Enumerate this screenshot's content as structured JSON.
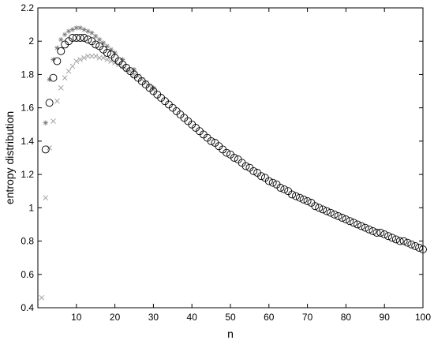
{
  "chart_data": {
    "type": "scatter",
    "xlabel": "n",
    "ylabel": "entropy distribution",
    "xlim": [
      0,
      100
    ],
    "ylim": [
      0.4,
      2.2
    ],
    "x_ticks": [
      10,
      20,
      30,
      40,
      50,
      60,
      70,
      80,
      90,
      100
    ],
    "y_ticks": [
      0.4,
      0.6,
      0.8,
      1.0,
      1.2,
      1.4,
      1.6,
      1.8,
      2.0,
      2.2
    ],
    "y_tick_labels": [
      "0.4",
      "0.6",
      "0.8",
      "1",
      "1.2",
      "1.4",
      "1.6",
      "1.8",
      "2",
      "2.2"
    ],
    "grid": false,
    "colors": {
      "circle": "#000000",
      "star": "#7a7a7a",
      "cross": "#9a9a9a",
      "axis": "#000000"
    },
    "series": [
      {
        "marker": "star",
        "x": [
          2,
          3,
          4,
          5,
          6,
          7,
          8,
          9,
          10,
          11,
          12,
          13,
          14,
          15,
          16,
          17,
          18,
          19,
          20,
          22,
          25,
          30
        ],
        "y": [
          1.51,
          1.77,
          1.89,
          1.96,
          2.01,
          2.04,
          2.06,
          2.07,
          2.08,
          2.08,
          2.07,
          2.06,
          2.05,
          2.03,
          2.01,
          1.99,
          1.97,
          1.95,
          1.93,
          1.89,
          1.83,
          1.72
        ]
      },
      {
        "marker": "circle",
        "x": [
          2,
          3,
          4,
          5,
          6,
          7,
          8,
          9,
          10,
          11,
          12,
          13,
          14,
          15,
          16,
          17,
          18,
          19,
          20,
          21,
          22,
          23,
          24,
          25,
          26,
          27,
          28,
          29,
          30,
          31,
          32,
          33,
          34,
          35,
          36,
          37,
          38,
          39,
          40,
          41,
          42,
          43,
          44,
          45,
          46,
          47,
          48,
          49,
          50,
          51,
          52,
          53,
          54,
          55,
          56,
          57,
          58,
          59,
          60,
          61,
          62,
          63,
          64,
          65,
          66,
          67,
          68,
          69,
          70,
          71,
          72,
          73,
          74,
          75,
          76,
          77,
          78,
          79,
          80,
          81,
          82,
          83,
          84,
          85,
          86,
          87,
          88,
          89,
          90,
          91,
          92,
          93,
          94,
          95,
          96,
          97,
          98,
          99,
          100
        ],
        "y": [
          1.35,
          1.63,
          1.78,
          1.88,
          1.94,
          1.98,
          2.0,
          2.02,
          2.02,
          2.02,
          2.02,
          2.01,
          2.0,
          1.98,
          1.97,
          1.95,
          1.93,
          1.92,
          1.9,
          1.88,
          1.86,
          1.84,
          1.82,
          1.8,
          1.78,
          1.76,
          1.74,
          1.72,
          1.7,
          1.68,
          1.66,
          1.64,
          1.62,
          1.6,
          1.58,
          1.56,
          1.54,
          1.52,
          1.5,
          1.48,
          1.46,
          1.44,
          1.42,
          1.4,
          1.39,
          1.37,
          1.35,
          1.33,
          1.32,
          1.3,
          1.29,
          1.27,
          1.25,
          1.24,
          1.22,
          1.21,
          1.19,
          1.18,
          1.16,
          1.15,
          1.14,
          1.12,
          1.11,
          1.1,
          1.08,
          1.07,
          1.06,
          1.05,
          1.04,
          1.03,
          1.01,
          1.0,
          0.99,
          0.98,
          0.97,
          0.96,
          0.95,
          0.94,
          0.93,
          0.92,
          0.91,
          0.9,
          0.89,
          0.88,
          0.87,
          0.86,
          0.85,
          0.85,
          0.84,
          0.83,
          0.82,
          0.81,
          0.8,
          0.8,
          0.79,
          0.78,
          0.77,
          0.76,
          0.75
        ]
      },
      {
        "marker": "cross",
        "x": [
          2,
          3,
          4,
          5,
          6,
          7,
          8,
          9,
          10,
          11,
          12,
          13,
          14,
          15,
          16,
          17,
          18,
          19,
          20,
          21,
          22,
          23,
          24,
          25,
          26,
          27,
          28,
          29,
          30
        ],
        "y": [
          1.06,
          1.36,
          1.52,
          1.64,
          1.72,
          1.78,
          1.82,
          1.85,
          1.88,
          1.89,
          1.9,
          1.91,
          1.91,
          1.91,
          1.9,
          1.9,
          1.89,
          1.88,
          1.87,
          1.86,
          1.85,
          1.83,
          1.82,
          1.8,
          1.79,
          1.77,
          1.75,
          1.73,
          1.71
        ]
      },
      {
        "marker": "cross",
        "x": [
          1
        ],
        "y": [
          0.46
        ]
      }
    ]
  }
}
